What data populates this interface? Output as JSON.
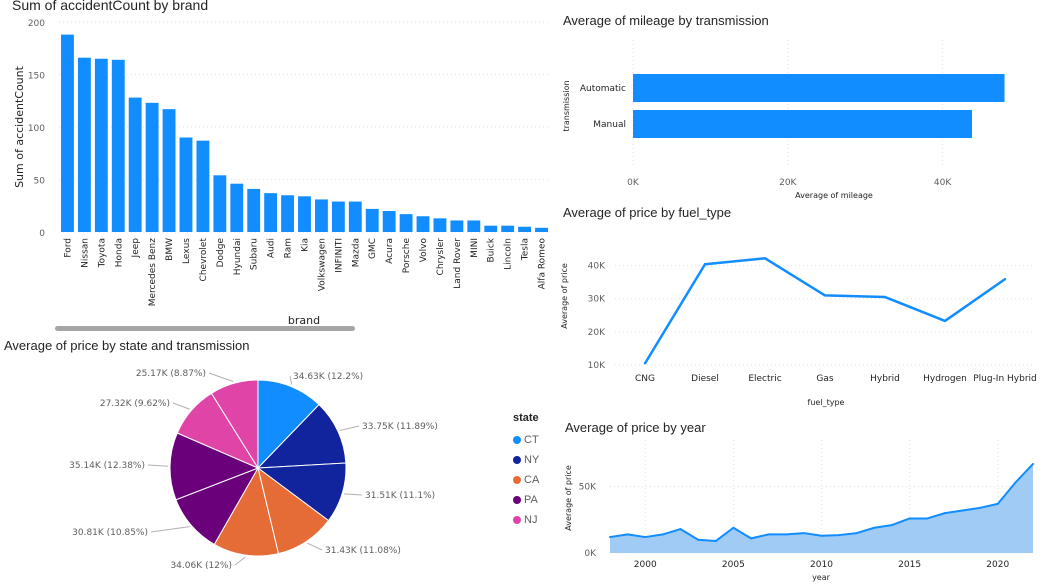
{
  "chart_data": [
    {
      "id": "brand",
      "type": "bar",
      "title": "Sum of accidentCount by brand",
      "xlabel": "brand",
      "ylabel": "Sum of accidentCount",
      "ylim": [
        0,
        200
      ],
      "yticks": [
        "0",
        "50",
        "100",
        "150",
        "200"
      ],
      "categories": [
        "Ford",
        "Nissan",
        "Toyota",
        "Honda",
        "Jeep",
        "Mercedes Benz",
        "BMW",
        "Lexus",
        "Chevrolet",
        "Dodge",
        "Hyundai",
        "Subaru",
        "Audi",
        "Ram",
        "Kia",
        "Volkswagen",
        "INFINITI",
        "Mazda",
        "GMC",
        "Acura",
        "Porsche",
        "Volvo",
        "Chrysler",
        "Land Rover",
        "MINI",
        "Buick",
        "Lincoln",
        "Tesla",
        "Alfa Romeo"
      ],
      "values": [
        188,
        166,
        165,
        164,
        128,
        123,
        117,
        90,
        87,
        54,
        46,
        41,
        37,
        35,
        34,
        31,
        29,
        29,
        22,
        20,
        17,
        15,
        13,
        11,
        11,
        6,
        6,
        5,
        4
      ],
      "color": "#118dff"
    },
    {
      "id": "transmission",
      "type": "bar",
      "orientation": "horizontal",
      "title": "Average of mileage by transmission",
      "xlabel": "Average of mileage",
      "ylabel": "transmission",
      "xlim": [
        0,
        50000
      ],
      "xticks": [
        "0K",
        "20K",
        "40K"
      ],
      "categories": [
        "Automatic",
        "Manual"
      ],
      "values": [
        48000,
        43800
      ],
      "color": "#118dff"
    },
    {
      "id": "fuel",
      "type": "line",
      "title": "Average of price by fuel_type",
      "xlabel": "fuel_type",
      "ylabel": "Average of price",
      "ylim": [
        10000,
        45000
      ],
      "yticks": [
        "10K",
        "20K",
        "30K",
        "40K"
      ],
      "categories": [
        "CNG",
        "Diesel",
        "Electric",
        "Gas",
        "Hybrid",
        "Hydrogen",
        "Plug-In Hybrid"
      ],
      "values": [
        10500,
        40400,
        42200,
        31000,
        30500,
        23300,
        35900
      ],
      "color": "#118dff"
    },
    {
      "id": "state",
      "type": "pie",
      "title": "Average of price by state and transmission",
      "legend_title": "state",
      "legend": [
        {
          "label": "CT",
          "color": "#118dff"
        },
        {
          "label": "NY",
          "color": "#12239e"
        },
        {
          "label": "CA",
          "color": "#e66c37"
        },
        {
          "label": "PA",
          "color": "#6b007b"
        },
        {
          "label": "NJ",
          "color": "#e044a7"
        }
      ],
      "slices": [
        {
          "state": "CT",
          "value": 34630,
          "percent": 12.2,
          "label": "34.63K (12.2%)",
          "color": "#118dff"
        },
        {
          "state": "NY",
          "value": 33750,
          "percent": 11.89,
          "label": "33.75K (11.89%)",
          "color": "#12239e"
        },
        {
          "state": "NY",
          "value": 31510,
          "percent": 11.1,
          "label": "31.51K (11.1%)",
          "color": "#12239e"
        },
        {
          "state": "CA",
          "value": 31430,
          "percent": 11.08,
          "label": "31.43K (11.08%)",
          "color": "#e66c37"
        },
        {
          "state": "CA",
          "value": 34060,
          "percent": 12,
          "label": "34.06K (12%)",
          "color": "#e66c37"
        },
        {
          "state": "PA",
          "value": 30810,
          "percent": 10.85,
          "label": "30.81K (10.85%)",
          "color": "#6b007b"
        },
        {
          "state": "PA",
          "value": 35140,
          "percent": 12.38,
          "label": "35.14K (12.38%)",
          "color": "#6b007b"
        },
        {
          "state": "NJ",
          "value": 27320,
          "percent": 9.62,
          "label": "27.32K (9.62%)",
          "color": "#e044a7"
        },
        {
          "state": "NJ",
          "value": 25170,
          "percent": 8.87,
          "label": "25.17K (8.87%)",
          "color": "#e044a7"
        }
      ]
    },
    {
      "id": "year",
      "type": "area",
      "title": "Average of price by year",
      "xlabel": "year",
      "ylabel": "Average of price",
      "xlim": [
        1998,
        2022
      ],
      "ylim": [
        0,
        70000
      ],
      "xticks": [
        2000,
        2005,
        2010,
        2015,
        2020
      ],
      "yticks": [
        "0K",
        "50K"
      ],
      "x": [
        1998,
        1999,
        2000,
        2001,
        2002,
        2003,
        2004,
        2005,
        2006,
        2007,
        2008,
        2009,
        2010,
        2011,
        2012,
        2013,
        2014,
        2015,
        2016,
        2017,
        2018,
        2019,
        2020,
        2021,
        2022
      ],
      "values": [
        12000,
        14000,
        12000,
        14000,
        18000,
        10000,
        9000,
        19000,
        11000,
        14000,
        14000,
        15000,
        13000,
        13500,
        15000,
        19000,
        21000,
        26000,
        26000,
        30000,
        32000,
        34000,
        37000,
        53000,
        67000
      ],
      "color": "#118dff",
      "fill": "#9fcbf5"
    }
  ]
}
